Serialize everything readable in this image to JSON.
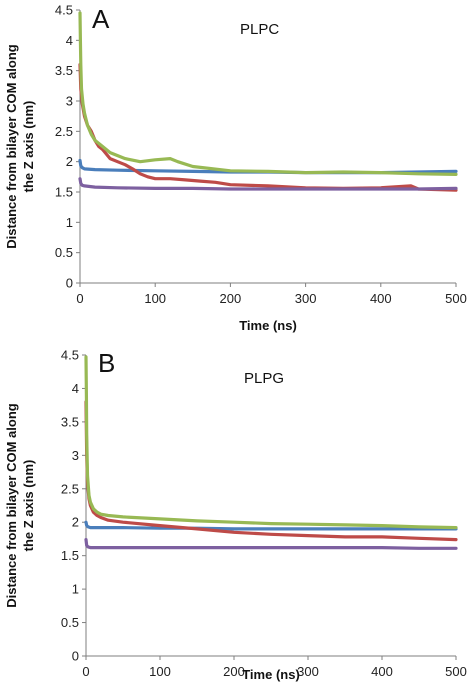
{
  "chart_data": [
    {
      "type": "line",
      "panel_label": "A",
      "title": "PLPC",
      "xlabel": "Time (ns)",
      "ylabel_lines": [
        "Distance from bilayer COM along",
        "the Z axis (nm)"
      ],
      "xlim": [
        0,
        500
      ],
      "ylim": [
        0,
        4.5
      ],
      "xticks": [
        0,
        100,
        200,
        300,
        400,
        500
      ],
      "yticks": [
        0,
        0.5,
        1,
        1.5,
        2,
        2.5,
        3,
        3.5,
        4,
        4.5
      ],
      "ytick_labels": [
        "0",
        "0.5",
        "1",
        "1.5",
        "2",
        "2.5",
        "3",
        "3.5",
        "4",
        "4.5"
      ],
      "grid": false,
      "series": [
        {
          "color": "#4a7ebb",
          "x": [
            0,
            1,
            3,
            6,
            20,
            50,
            100,
            150,
            200,
            250,
            300,
            350,
            400,
            450,
            500
          ],
          "values": [
            2.02,
            1.93,
            1.9,
            1.88,
            1.87,
            1.86,
            1.85,
            1.84,
            1.83,
            1.83,
            1.82,
            1.82,
            1.82,
            1.83,
            1.84
          ]
        },
        {
          "color": "#be4b48",
          "x": [
            0,
            1,
            3,
            6,
            10,
            15,
            20,
            25,
            30,
            40,
            50,
            60,
            70,
            80,
            90,
            100,
            120,
            140,
            160,
            180,
            200,
            250,
            300,
            350,
            400,
            440,
            450,
            500
          ],
          "values": [
            3.6,
            3.2,
            2.95,
            2.75,
            2.6,
            2.5,
            2.35,
            2.25,
            2.2,
            2.05,
            2.0,
            1.95,
            1.88,
            1.8,
            1.75,
            1.72,
            1.72,
            1.7,
            1.68,
            1.66,
            1.62,
            1.6,
            1.57,
            1.56,
            1.57,
            1.6,
            1.55,
            1.53
          ]
        },
        {
          "color": "#98b954",
          "x": [
            0,
            0.5,
            1,
            2,
            4,
            6,
            10,
            15,
            20,
            30,
            40,
            50,
            60,
            80,
            100,
            120,
            130,
            150,
            200,
            250,
            300,
            350,
            400,
            450,
            500
          ],
          "values": [
            4.45,
            4.0,
            3.6,
            3.2,
            2.95,
            2.8,
            2.6,
            2.45,
            2.35,
            2.25,
            2.15,
            2.1,
            2.05,
            2.0,
            2.03,
            2.05,
            2.0,
            1.92,
            1.85,
            1.84,
            1.82,
            1.83,
            1.82,
            1.8,
            1.79
          ]
        },
        {
          "color": "#7d60a0",
          "x": [
            0,
            1,
            3,
            6,
            20,
            50,
            100,
            150,
            200,
            250,
            300,
            350,
            400,
            450,
            500
          ],
          "values": [
            1.72,
            1.64,
            1.61,
            1.6,
            1.58,
            1.57,
            1.56,
            1.56,
            1.55,
            1.55,
            1.55,
            1.55,
            1.55,
            1.55,
            1.56
          ]
        }
      ]
    },
    {
      "type": "line",
      "panel_label": "B",
      "title": "PLPG",
      "xlabel": "Time (ns)",
      "ylabel_lines": [
        "Distance from bilayer COM along",
        "the Z axis (nm)"
      ],
      "xlim": [
        0,
        500
      ],
      "ylim": [
        0,
        4.5
      ],
      "xticks": [
        0,
        100,
        200,
        300,
        400,
        500
      ],
      "yticks": [
        0,
        0.5,
        1,
        1.5,
        2,
        2.5,
        3,
        3.5,
        4,
        4.5
      ],
      "ytick_labels": [
        "0",
        "0.5",
        "1",
        "1.5",
        "2",
        "2.5",
        "3",
        "3.5",
        "4",
        "4.5"
      ],
      "grid": false,
      "series": [
        {
          "color": "#4a7ebb",
          "x": [
            0,
            1,
            3,
            6,
            20,
            50,
            100,
            150,
            200,
            250,
            300,
            350,
            400,
            450,
            500
          ],
          "values": [
            2.0,
            1.95,
            1.93,
            1.92,
            1.92,
            1.92,
            1.91,
            1.91,
            1.9,
            1.9,
            1.9,
            1.9,
            1.9,
            1.9,
            1.9
          ]
        },
        {
          "color": "#be4b48",
          "x": [
            0,
            1,
            2,
            4,
            6,
            10,
            15,
            20,
            30,
            50,
            100,
            150,
            200,
            250,
            300,
            350,
            400,
            450,
            500
          ],
          "values": [
            3.8,
            3.0,
            2.6,
            2.35,
            2.25,
            2.15,
            2.1,
            2.07,
            2.03,
            2.0,
            1.95,
            1.9,
            1.85,
            1.82,
            1.8,
            1.78,
            1.78,
            1.76,
            1.74
          ]
        },
        {
          "color": "#98b954",
          "x": [
            0,
            0.5,
            1,
            2,
            4,
            6,
            10,
            15,
            20,
            30,
            50,
            100,
            150,
            200,
            250,
            300,
            350,
            400,
            450,
            500
          ],
          "values": [
            4.47,
            3.9,
            3.3,
            2.7,
            2.4,
            2.3,
            2.2,
            2.15,
            2.12,
            2.1,
            2.08,
            2.05,
            2.02,
            2.0,
            1.98,
            1.97,
            1.96,
            1.95,
            1.93,
            1.92
          ]
        },
        {
          "color": "#7d60a0",
          "x": [
            0,
            1,
            3,
            6,
            20,
            50,
            100,
            150,
            200,
            250,
            300,
            350,
            400,
            450,
            500
          ],
          "values": [
            1.74,
            1.65,
            1.63,
            1.62,
            1.62,
            1.62,
            1.62,
            1.62,
            1.62,
            1.62,
            1.62,
            1.62,
            1.62,
            1.61,
            1.61
          ]
        }
      ]
    }
  ]
}
